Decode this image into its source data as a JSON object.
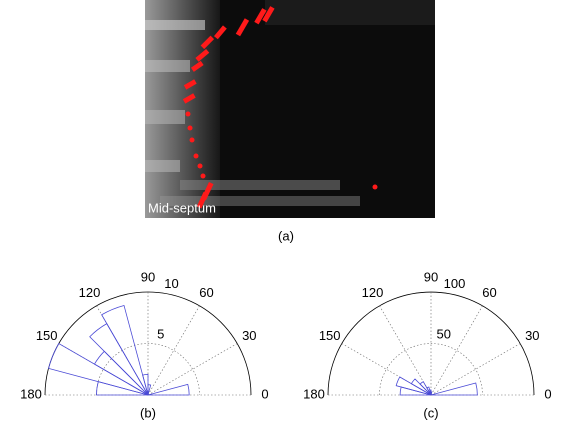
{
  "image_panel": {
    "label": "Mid-septum",
    "caption": "(a)"
  },
  "chart_data": [
    {
      "type": "polar-histogram",
      "caption": "(b)",
      "bins": [
        0,
        15,
        30,
        45,
        60,
        75,
        90,
        105,
        120,
        135,
        150,
        165,
        180
      ],
      "counts": [
        4,
        0,
        0,
        0,
        0,
        1,
        2,
        9,
        8,
        6,
        10,
        5
      ],
      "color": "#4b4bd6",
      "rlim": [
        0,
        10
      ],
      "rticks": [
        5,
        10
      ],
      "angle_ticks": [
        0,
        30,
        60,
        90,
        120,
        150,
        180
      ]
    },
    {
      "type": "polar-histogram",
      "caption": "(c)",
      "bins": [
        0,
        15,
        30,
        45,
        60,
        75,
        90,
        105,
        120,
        135,
        150,
        165,
        180
      ],
      "counts": [
        45,
        0,
        0,
        0,
        0,
        3,
        5,
        8,
        15,
        22,
        35,
        30
      ],
      "color": "#4b4bd6",
      "rlim": [
        0,
        100
      ],
      "rticks": [
        50,
        100
      ],
      "angle_ticks": [
        0,
        30,
        60,
        90,
        120,
        150,
        180
      ]
    }
  ]
}
